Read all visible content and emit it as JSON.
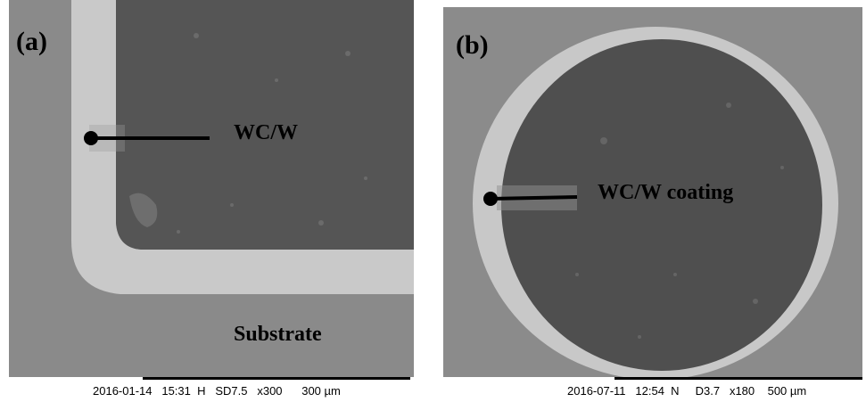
{
  "panel_a": {
    "letter": "(a)",
    "label_coating": "WC/W",
    "label_substrate": "Substrate",
    "info": {
      "date": "2016-01-14",
      "time": "15:31",
      "mode": "H",
      "detector": "SD7.5",
      "magnification": "x300",
      "scale": "300 µm"
    }
  },
  "panel_b": {
    "letter": "(b)",
    "label_coating": "WC/W coating",
    "info": {
      "date": "2016-07-11",
      "time": "12:54",
      "mode": "N",
      "detector": "D3.7",
      "magnification": "x180",
      "scale": "500 µm"
    }
  }
}
